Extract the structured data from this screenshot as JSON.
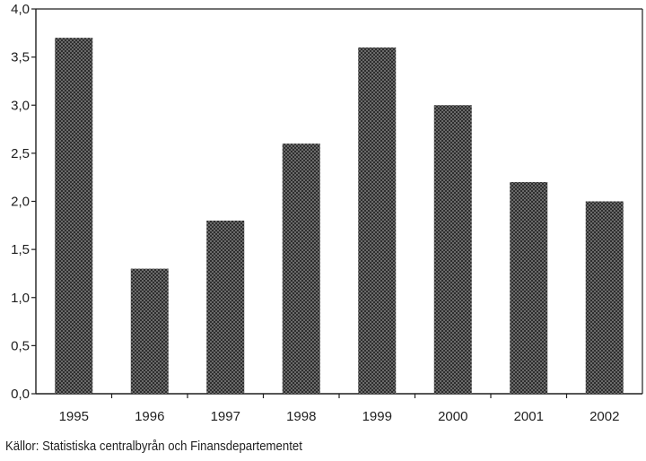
{
  "chart_data": {
    "type": "bar",
    "categories": [
      "1995",
      "1996",
      "1997",
      "1998",
      "1999",
      "2000",
      "2001",
      "2002"
    ],
    "values": [
      3.7,
      1.3,
      1.8,
      2.6,
      3.6,
      3.0,
      2.2,
      2.0
    ],
    "title": "",
    "xlabel": "",
    "ylabel": "",
    "ylim": [
      0,
      4.0
    ],
    "yticks": [
      "0,0",
      "0,5",
      "1,0",
      "1,5",
      "2,0",
      "2,5",
      "3,0",
      "3,5",
      "4,0"
    ],
    "grid": false,
    "legend": "none",
    "bar_color": "#4a4a4a",
    "axis_color": "#1f1f1f"
  },
  "source_note": "Källor: Statistiska centralbyrån och Finansdepartementet"
}
